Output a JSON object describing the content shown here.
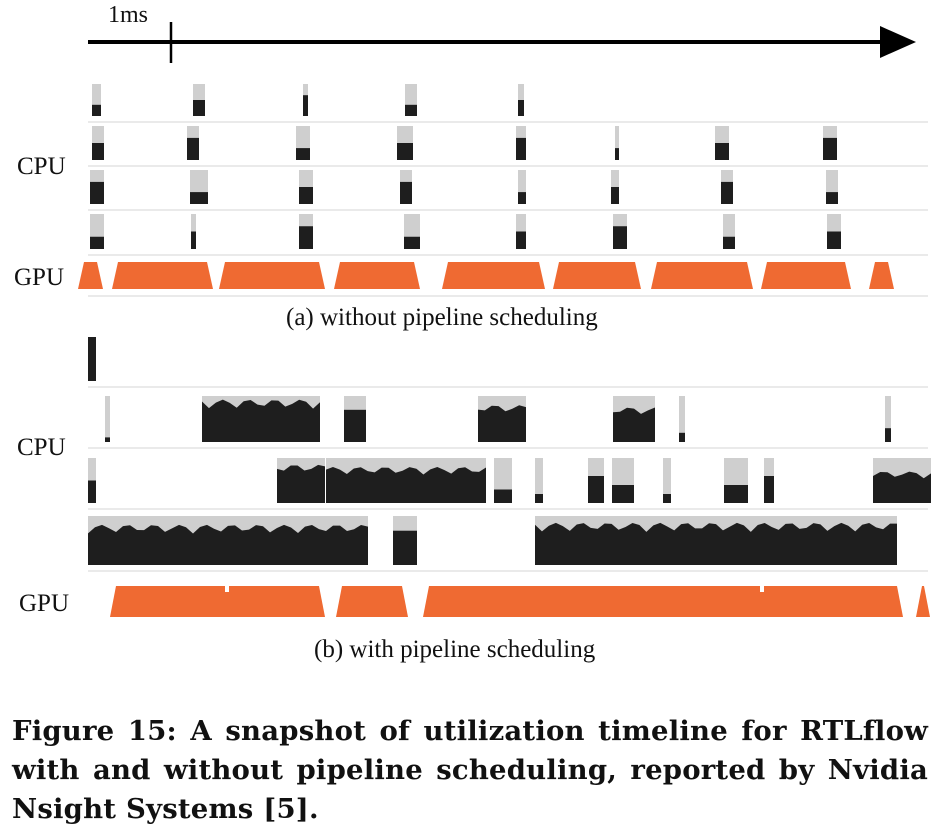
{
  "scale": {
    "label": "1ms"
  },
  "panel_a": {
    "row_labels": {
      "cpu": "CPU",
      "gpu": "GPU"
    },
    "caption": "(a) without pipeline scheduling"
  },
  "panel_b": {
    "row_labels": {
      "cpu": "CPU",
      "gpu": "GPU"
    },
    "caption": "(b) with pipeline scheduling"
  },
  "figure_caption": "Figure 15: A snapshot of utilization timeline for RTLflow with and without pipeline scheduling, reported by Nvidia Nsight Systems [5].",
  "colors": {
    "cpu_active": "#1e1e1e",
    "cpu_idle_shade": "#cfcfcf",
    "gpu": "#ef6a32",
    "track_line": "#e4e4e4"
  }
}
